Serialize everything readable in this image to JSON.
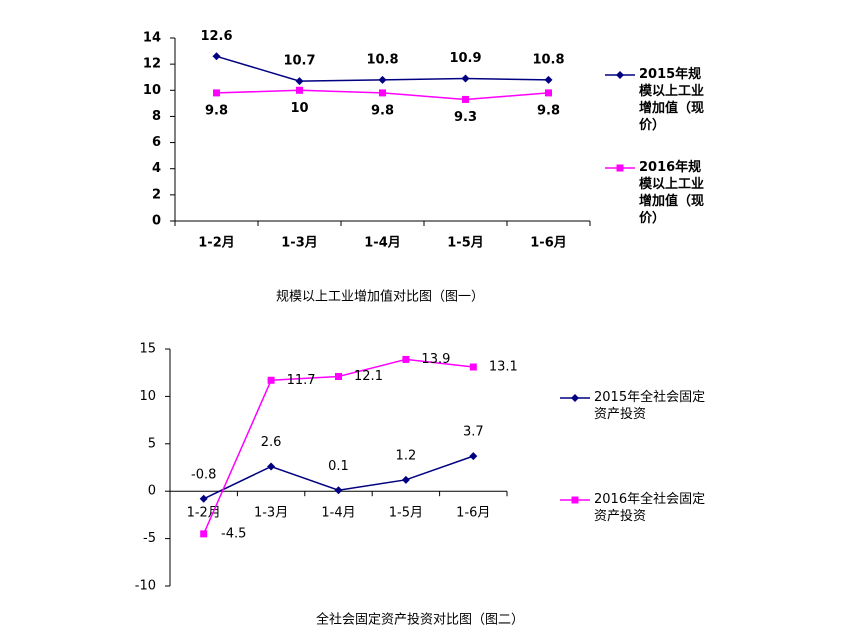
{
  "chart_data": [
    {
      "type": "line",
      "title": "规模以上工业增加值对比图（图一）",
      "categories": [
        "1-2月",
        "1-3月",
        "1-4月",
        "1-5月",
        "1-6月"
      ],
      "series": [
        {
          "name": "2015年规模以上工业增加值（现价）",
          "color": "#000080",
          "values": [
            12.6,
            10.7,
            10.8,
            10.9,
            10.8
          ]
        },
        {
          "name": "2016年规模以上工业增加值（现价）",
          "color": "#ff00ff",
          "values": [
            9.8,
            10,
            9.8,
            9.3,
            9.8
          ]
        }
      ],
      "ylim": [
        0,
        14
      ],
      "yticks": [
        0,
        2,
        4,
        6,
        8,
        10,
        12,
        14
      ],
      "grid": false
    },
    {
      "type": "line",
      "title": "全社会固定资产投资对比图（图二）",
      "categories": [
        "1-2月",
        "1-3月",
        "1-4月",
        "1-5月",
        "1-6月"
      ],
      "series": [
        {
          "name": "2015年全社会固定资产投资",
          "color": "#000080",
          "values": [
            -0.8,
            2.6,
            0.1,
            1.2,
            3.7
          ]
        },
        {
          "name": "2016年全社会固定资产投资",
          "color": "#ff00ff",
          "values": [
            -4.5,
            11.7,
            12.1,
            13.9,
            13.1
          ]
        }
      ],
      "ylim": [
        -10,
        15
      ],
      "yticks": [
        -10,
        -5,
        0,
        5,
        10,
        15
      ],
      "grid": false
    }
  ]
}
